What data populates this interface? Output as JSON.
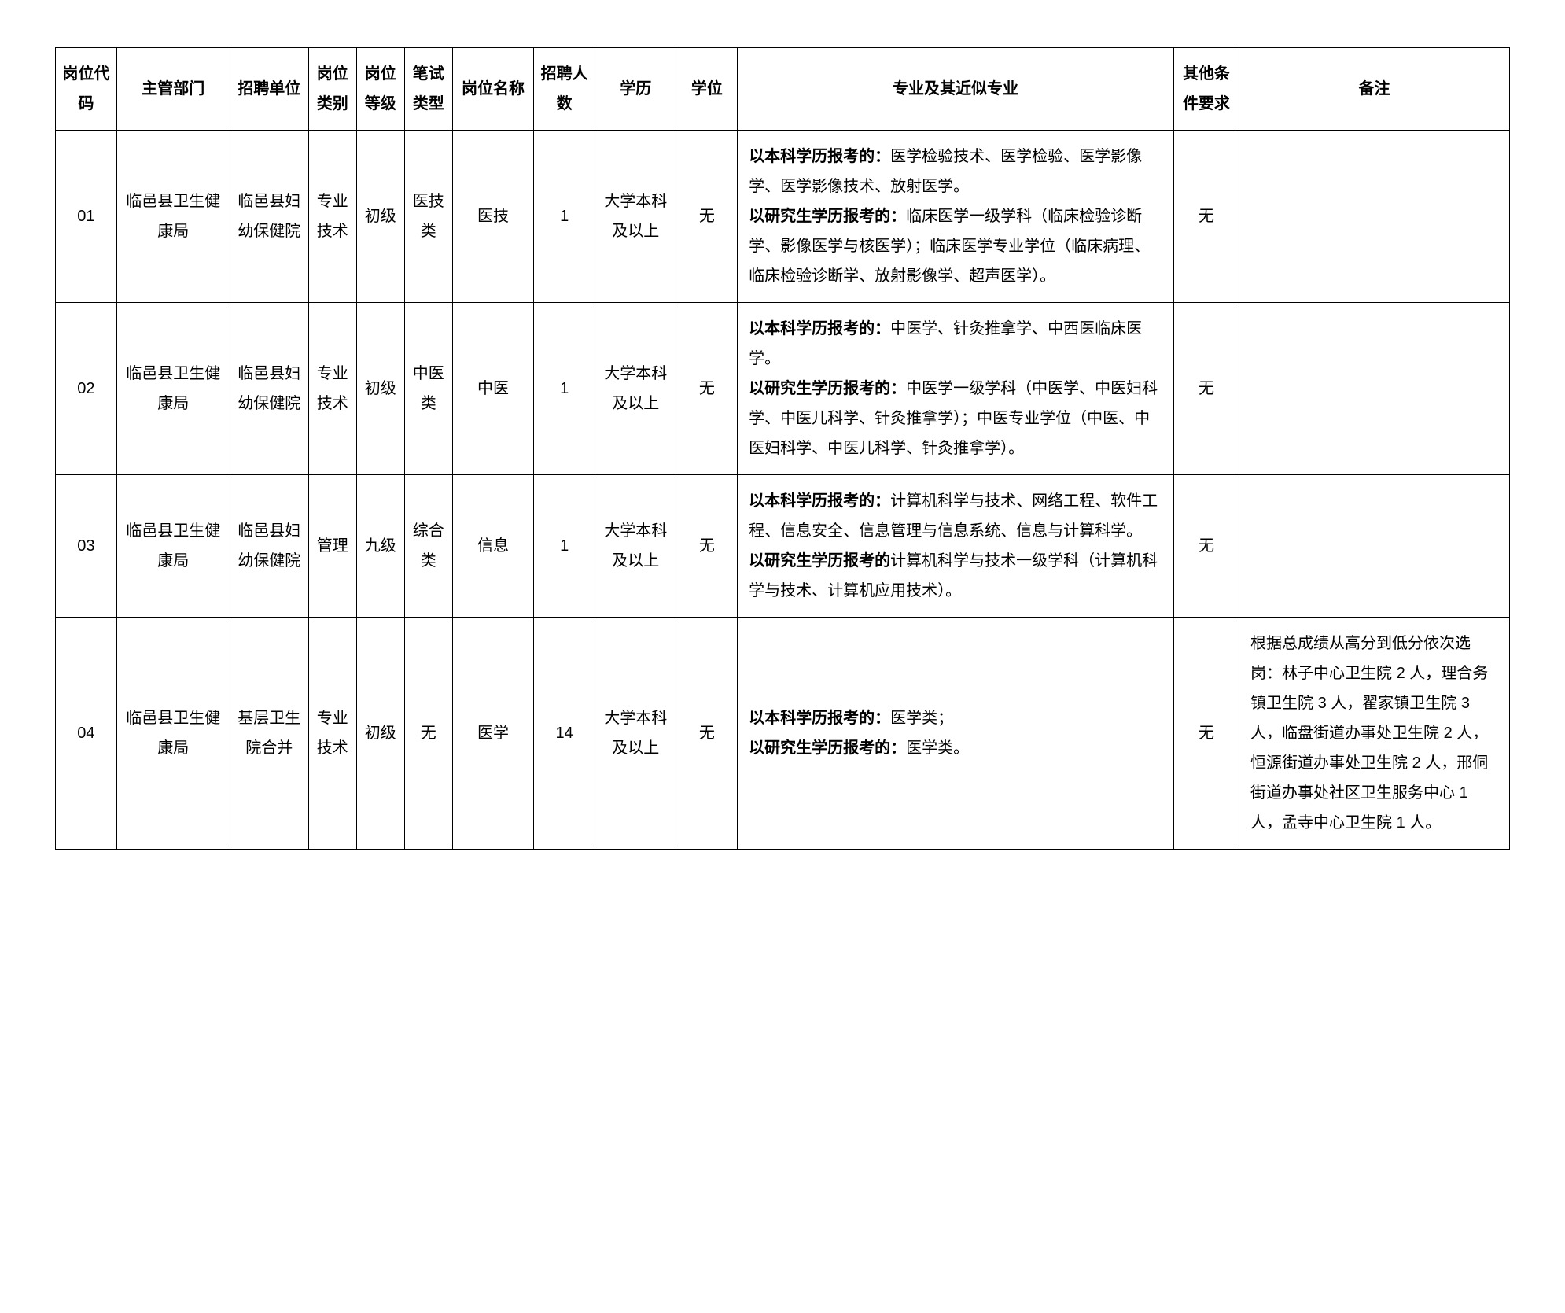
{
  "headers": {
    "code": "岗位代码",
    "dept": "主管部门",
    "unit": "招聘单位",
    "cat": "岗位类别",
    "lvl": "岗位等级",
    "exam": "笔试类型",
    "pname": "岗位名称",
    "count": "招聘人数",
    "edu": "学历",
    "degree": "学位",
    "major": "专业及其近似专业",
    "other": "其他条件要求",
    "remark": "备注"
  },
  "rows": [
    {
      "code": "01",
      "dept": "临邑县卫生健康局",
      "unit": "临邑县妇幼保健院",
      "cat": "专业技术",
      "lvl": "初级",
      "exam": "医技类",
      "pname": "医技",
      "count": "1",
      "edu": "大学本科及以上",
      "degree": "无",
      "major_b1": "以本科学历报考的：",
      "major_t1": "医学检验技术、医学检验、医学影像学、医学影像技术、放射医学。",
      "major_b2": "以研究生学历报考的：",
      "major_t2": "临床医学一级学科（临床检验诊断学、影像医学与核医学）；临床医学专业学位（临床病理、临床检验诊断学、放射影像学、超声医学）。",
      "other": "无",
      "remark": ""
    },
    {
      "code": "02",
      "dept": "临邑县卫生健康局",
      "unit": "临邑县妇幼保健院",
      "cat": "专业技术",
      "lvl": "初级",
      "exam": "中医类",
      "pname": "中医",
      "count": "1",
      "edu": "大学本科及以上",
      "degree": "无",
      "major_b1": "以本科学历报考的：",
      "major_t1": "中医学、针灸推拿学、中西医临床医学。",
      "major_b2": "以研究生学历报考的：",
      "major_t2": "中医学一级学科（中医学、中医妇科学、中医儿科学、针灸推拿学）；中医专业学位（中医、中医妇科学、中医儿科学、针灸推拿学）。",
      "other": "无",
      "remark": ""
    },
    {
      "code": "03",
      "dept": "临邑县卫生健康局",
      "unit": "临邑县妇幼保健院",
      "cat": "管理",
      "lvl": "九级",
      "exam": "综合类",
      "pname": "信息",
      "count": "1",
      "edu": "大学本科及以上",
      "degree": "无",
      "major_b1": "以本科学历报考的：",
      "major_t1": "计算机科学与技术、网络工程、软件工程、信息安全、信息管理与信息系统、信息与计算科学。",
      "major_b2": "以研究生学历报考的",
      "major_t2": "计算机科学与技术一级学科（计算机科学与技术、计算机应用技术）。",
      "other": "无",
      "remark": ""
    },
    {
      "code": "04",
      "dept": "临邑县卫生健康局",
      "unit": "基层卫生院合并",
      "cat": "专业技术",
      "lvl": "初级",
      "exam": "无",
      "pname": "医学",
      "count": "14",
      "edu": "大学本科及以上",
      "degree": "无",
      "major_b1": "以本科学历报考的：",
      "major_t1": "医学类；",
      "major_b2": "以研究生学历报考的：",
      "major_t2": "医学类。",
      "other": "无",
      "remark": "根据总成绩从高分到低分依次选岗：林子中心卫生院 2 人，理合务镇卫生院 3 人，翟家镇卫生院 3 人，临盘街道办事处卫生院 2 人，恒源街道办事处卫生院 2 人，邢侗街道办事处社区卫生服务中心 1 人，孟寺中心卫生院 1 人。"
    }
  ]
}
